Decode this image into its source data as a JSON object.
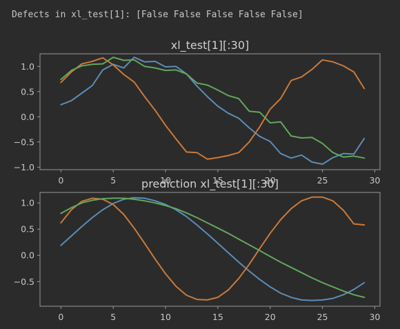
{
  "output_text": "Defects in xl_test[1]: [False False False False False]",
  "chart_data": [
    {
      "type": "line",
      "title": "xl_test[1][:30]",
      "xlabel": "",
      "ylabel": "",
      "xlim": [
        -2,
        30.5
      ],
      "ylim": [
        -1.05,
        1.25
      ],
      "xticks": [
        0,
        5,
        10,
        15,
        20,
        25,
        30
      ],
      "yticks": [
        -1.0,
        -0.5,
        0.0,
        0.5,
        1.0
      ],
      "x": [
        0,
        1,
        2,
        3,
        4,
        5,
        6,
        7,
        8,
        9,
        10,
        11,
        12,
        13,
        14,
        15,
        16,
        17,
        18,
        19,
        20,
        21,
        22,
        23,
        24,
        25,
        26,
        27,
        28,
        29
      ],
      "series": [
        {
          "color": "#5b8db8",
          "values": [
            0.24,
            0.32,
            0.47,
            0.62,
            0.93,
            1.04,
            0.97,
            1.18,
            1.09,
            1.1,
            0.99,
            1.0,
            0.85,
            0.61,
            0.4,
            0.21,
            0.07,
            -0.03,
            -0.22,
            -0.39,
            -0.49,
            -0.73,
            -0.82,
            -0.76,
            -0.9,
            -0.94,
            -0.81,
            -0.73,
            -0.74,
            -0.43
          ]
        },
        {
          "color": "#cb7a3a",
          "values": [
            0.68,
            0.89,
            1.05,
            1.1,
            1.17,
            1.03,
            0.84,
            0.69,
            0.4,
            0.13,
            -0.17,
            -0.44,
            -0.7,
            -0.71,
            -0.84,
            -0.81,
            -0.77,
            -0.71,
            -0.5,
            -0.2,
            0.15,
            0.36,
            0.72,
            0.79,
            0.94,
            1.13,
            1.09,
            1.01,
            0.89,
            0.56
          ]
        },
        {
          "color": "#62a85c",
          "values": [
            0.74,
            0.92,
            1.01,
            1.04,
            1.05,
            1.18,
            1.12,
            1.13,
            1.0,
            0.97,
            0.92,
            0.93,
            0.85,
            0.67,
            0.63,
            0.53,
            0.42,
            0.36,
            0.11,
            0.09,
            -0.12,
            -0.1,
            -0.38,
            -0.42,
            -0.41,
            -0.53,
            -0.71,
            -0.8,
            -0.78,
            -0.82
          ]
        }
      ]
    },
    {
      "type": "line",
      "title": "prediction xl_test[1][:30]",
      "xlabel": "",
      "ylabel": "",
      "xlim": [
        -2,
        30.5
      ],
      "ylim": [
        -0.97,
        1.2
      ],
      "xticks": [
        0,
        5,
        10,
        15,
        20,
        25,
        30
      ],
      "yticks": [
        -0.5,
        0.0,
        0.5,
        1.0
      ],
      "x": [
        0,
        1,
        2,
        3,
        4,
        5,
        6,
        7,
        8,
        9,
        10,
        11,
        12,
        13,
        14,
        15,
        16,
        17,
        18,
        19,
        20,
        21,
        22,
        23,
        24,
        25,
        26,
        27,
        28,
        29
      ],
      "series": [
        {
          "color": "#5b8db8",
          "values": [
            0.19,
            0.37,
            0.55,
            0.72,
            0.87,
            0.99,
            1.07,
            1.1,
            1.09,
            1.04,
            0.97,
            0.87,
            0.74,
            0.58,
            0.41,
            0.23,
            0.05,
            -0.13,
            -0.3,
            -0.46,
            -0.6,
            -0.72,
            -0.8,
            -0.85,
            -0.86,
            -0.85,
            -0.82,
            -0.75,
            -0.65,
            -0.52
          ]
        },
        {
          "color": "#cb7a3a",
          "values": [
            0.62,
            0.87,
            1.03,
            1.09,
            1.07,
            0.97,
            0.78,
            0.52,
            0.23,
            -0.07,
            -0.35,
            -0.59,
            -0.76,
            -0.84,
            -0.85,
            -0.8,
            -0.66,
            -0.44,
            -0.17,
            0.13,
            0.42,
            0.68,
            0.89,
            1.04,
            1.11,
            1.11,
            1.04,
            0.86,
            0.6,
            0.58
          ]
        },
        {
          "color": "#62a85c",
          "values": [
            0.8,
            0.91,
            1.0,
            1.05,
            1.08,
            1.09,
            1.09,
            1.07,
            1.04,
            1.0,
            0.95,
            0.89,
            0.81,
            0.72,
            0.62,
            0.52,
            0.42,
            0.31,
            0.2,
            0.09,
            -0.02,
            -0.13,
            -0.23,
            -0.33,
            -0.43,
            -0.52,
            -0.6,
            -0.68,
            -0.75,
            -0.8
          ]
        }
      ]
    }
  ]
}
